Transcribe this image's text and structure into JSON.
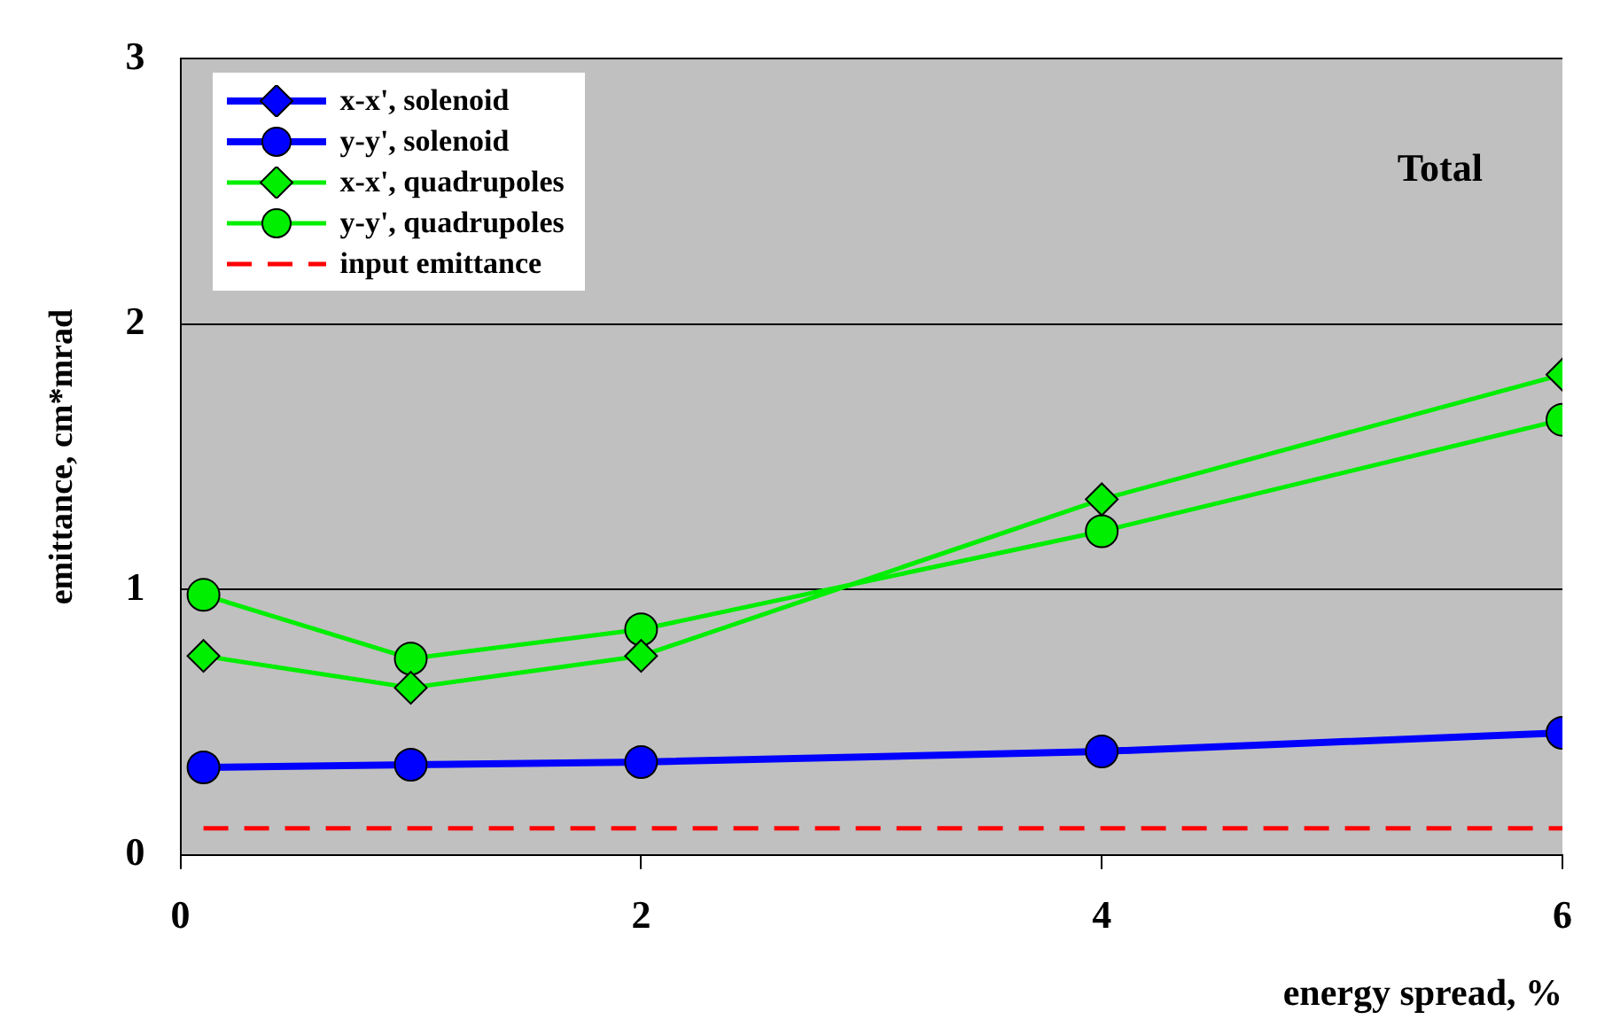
{
  "chart_data": {
    "type": "line",
    "xlabel": "energy spread, %",
    "ylabel": "emittance, cm*mrad",
    "x": [
      0.1,
      1,
      2,
      4,
      6
    ],
    "series": [
      {
        "name": "x-x',  solenoid",
        "color": "#0000ff",
        "marker": "diamond",
        "line_style": "solid",
        "values": [
          null,
          null,
          null,
          null,
          null
        ]
      },
      {
        "name": "y-y',  solenoid",
        "color": "#0000ff",
        "marker": "circle",
        "line_style": "solid",
        "values": [
          0.33,
          0.34,
          0.35,
          0.39,
          0.46
        ]
      },
      {
        "name": "x-x',  quadrupoles",
        "color": "#00ee00",
        "marker": "diamond",
        "line_style": "solid",
        "values": [
          0.75,
          0.63,
          0.75,
          1.34,
          1.81
        ]
      },
      {
        "name": "y-y',  quadrupoles",
        "color": "#00ee00",
        "marker": "circle",
        "line_style": "solid",
        "values": [
          0.98,
          0.74,
          0.85,
          1.22,
          1.64
        ]
      },
      {
        "name": "input emittance",
        "color": "#ff0000",
        "marker": "none",
        "line_style": "dashed",
        "values": [
          0.1,
          0.1,
          0.1,
          0.1,
          0.1
        ]
      }
    ],
    "xlim": [
      0,
      6
    ],
    "xticks": [
      0,
      2,
      4,
      6
    ],
    "ylim": [
      0,
      3
    ],
    "yticks": [
      0,
      1,
      2,
      3
    ],
    "grid": "y",
    "legend": "top left",
    "annotations": [
      "Total"
    ]
  }
}
